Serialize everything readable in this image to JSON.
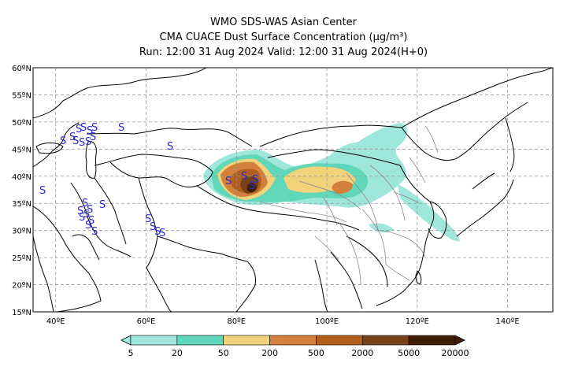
{
  "header": {
    "line1": "WMO SDS-WAS Asian Center",
    "line2": "CMA CUACE Dust Surface Concentration (μg/m³)",
    "line3": "Run: 12:00 31 Aug 2024    Valid: 12:00 31 Aug 2024(H+0)"
  },
  "map": {
    "lat_labels": [
      "60ºN",
      "55ºN",
      "50ºN",
      "45ºN",
      "40ºN",
      "35ºN",
      "30ºN",
      "25ºN",
      "20ºN",
      "15ºN"
    ],
    "lon_labels": [
      "40ºE",
      "60ºE",
      "80ºE",
      "100ºE",
      "120ºE",
      "140ºE"
    ],
    "station_symbol": "S",
    "station_color": "#2a2ad0",
    "dust_colors": {
      "level_5_20": "#9fe6dc",
      "level_20_50": "#5fd7b8",
      "level_50_200": "#f2d27a",
      "level_200_500": "#d2803c",
      "level_500_2000": "#b25e1c",
      "level_2000_5000": "#7a4214",
      "level_5000_20000": "#3e1e08"
    }
  },
  "legend": {
    "labels": [
      "5",
      "20",
      "50",
      "200",
      "500",
      "2000",
      "5000",
      "20000"
    ],
    "colors": [
      "#9fe6dc",
      "#5fd7b8",
      "#f2d27a",
      "#d2803c",
      "#b25e1c",
      "#7a4214",
      "#3e1e08"
    ]
  }
}
